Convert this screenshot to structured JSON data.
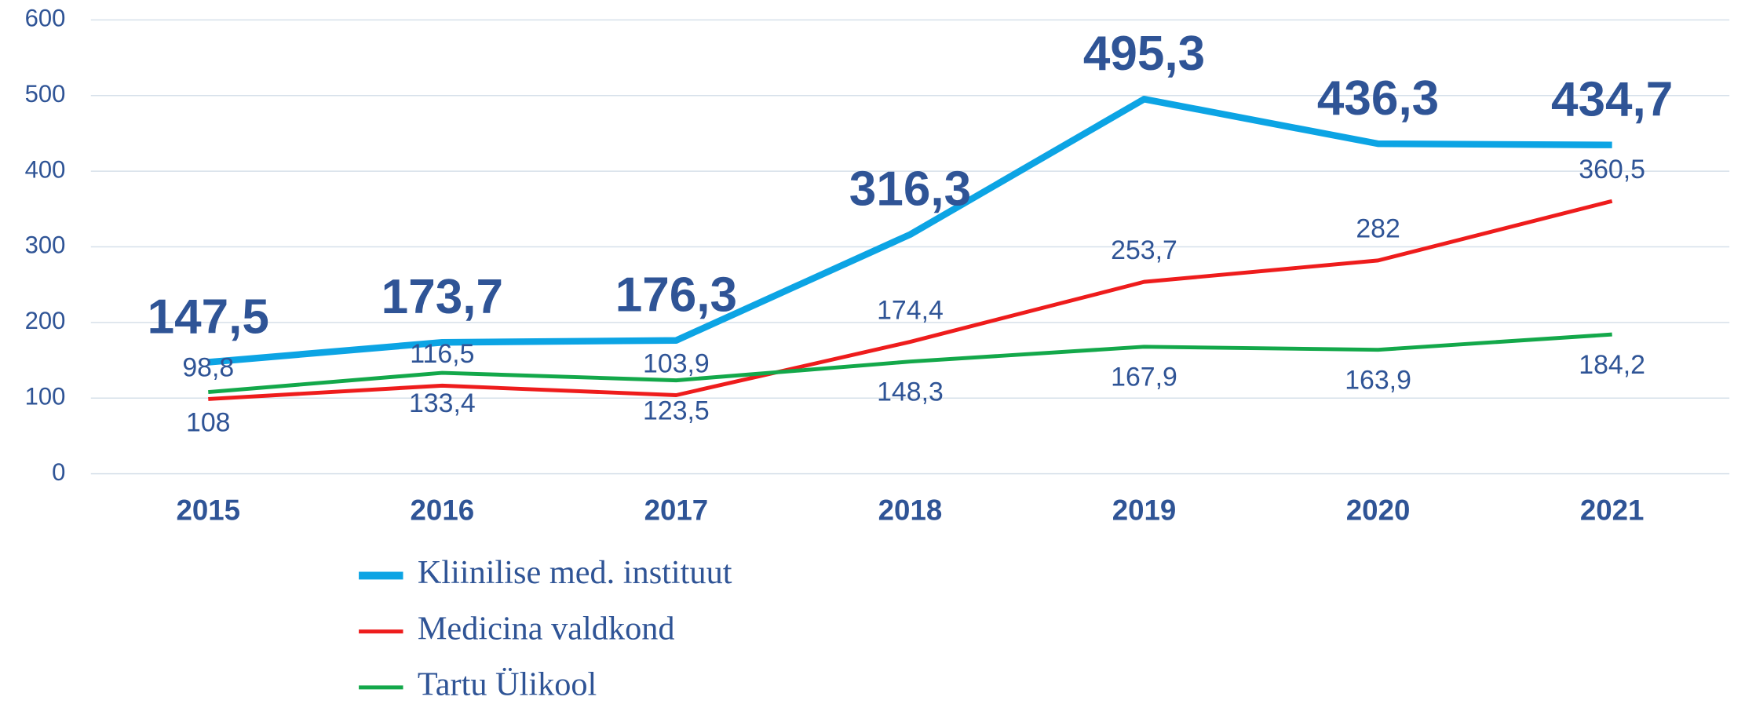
{
  "chart_data": {
    "type": "line",
    "categories": [
      "2015",
      "2016",
      "2017",
      "2018",
      "2019",
      "2020",
      "2021"
    ],
    "series": [
      {
        "name": "Kliinilise med. instituut",
        "color": "#0ca4e4",
        "values": [
          147.5,
          173.7,
          176.3,
          316.3,
          495.3,
          436.3,
          434.7
        ],
        "value_labels": [
          "147,5",
          "173,7",
          "176,3",
          "316,3",
          "495,3",
          "436,3",
          "434,7"
        ]
      },
      {
        "name": "Medicina valdkond",
        "color": "#ee1c1c",
        "values": [
          98.8,
          116.5,
          103.9,
          174.4,
          253.7,
          282,
          360.5
        ],
        "value_labels": [
          "98,8",
          "116,5",
          "103,9",
          "174,4",
          "253,7",
          "282",
          "360,5"
        ]
      },
      {
        "name": "Tartu Ülikool",
        "color": "#13a84a",
        "values": [
          108,
          133.4,
          123.5,
          148.3,
          167.9,
          163.9,
          184.2
        ],
        "value_labels": [
          "108",
          "133,4",
          "123,5",
          "148,3",
          "167,9",
          "163,9",
          "184,2"
        ]
      }
    ],
    "ylim": [
      0,
      600
    ],
    "yticks": [
      0,
      100,
      200,
      300,
      400,
      500,
      600
    ],
    "grid": true
  }
}
